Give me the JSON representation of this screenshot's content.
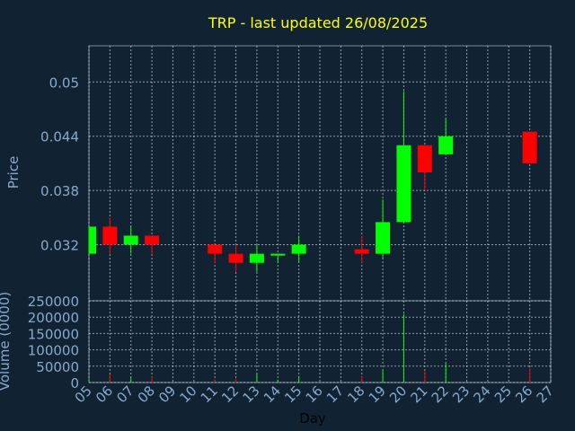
{
  "chart_data": {
    "type": "candlestick",
    "title": "TRP - last updated 26/08/2025",
    "xlabel": "Day",
    "price_panel": {
      "ylabel": "Price",
      "yticks": [
        "0.05",
        "0.044",
        "0.038",
        "0.032"
      ],
      "ylim": [
        0.0258,
        0.054
      ]
    },
    "volume_panel": {
      "ylabel": "Volume (0000)",
      "yticks": [
        "250000",
        "200000",
        "150000",
        "100000",
        "50000",
        "0"
      ],
      "ylim": [
        0,
        250000
      ]
    },
    "x_ticks": [
      "05",
      "06",
      "07",
      "08",
      "09",
      "10",
      "11",
      "12",
      "13",
      "14",
      "15",
      "16",
      "17",
      "18",
      "19",
      "20",
      "21",
      "22",
      "23",
      "24",
      "25",
      "26",
      "27"
    ],
    "up_color": "#00ff00",
    "down_color": "#ff0000",
    "grid": true,
    "candles": [
      {
        "day": "05",
        "open": 0.031,
        "high": 0.034,
        "low": 0.031,
        "close": 0.034,
        "volume": 5000
      },
      {
        "day": "06",
        "open": 0.034,
        "high": 0.035,
        "low": 0.031,
        "close": 0.032,
        "volume": 25000
      },
      {
        "day": "07",
        "open": 0.032,
        "high": 0.034,
        "low": 0.031,
        "close": 0.033,
        "volume": 15000
      },
      {
        "day": "08",
        "open": 0.033,
        "high": 0.033,
        "low": 0.031,
        "close": 0.032,
        "volume": 18000
      },
      {
        "day": "11",
        "open": 0.032,
        "high": 0.032,
        "low": 0.03,
        "close": 0.031,
        "volume": 10000
      },
      {
        "day": "12",
        "open": 0.031,
        "high": 0.032,
        "low": 0.029,
        "close": 0.03,
        "volume": 12000
      },
      {
        "day": "13",
        "open": 0.03,
        "high": 0.032,
        "low": 0.029,
        "close": 0.031,
        "volume": 25000
      },
      {
        "day": "14",
        "open": 0.031,
        "high": 0.031,
        "low": 0.03,
        "close": 0.031,
        "volume": 8000
      },
      {
        "day": "15",
        "open": 0.031,
        "high": 0.033,
        "low": 0.03,
        "close": 0.032,
        "volume": 20000
      },
      {
        "day": "18",
        "open": 0.0315,
        "high": 0.033,
        "low": 0.03,
        "close": 0.031,
        "volume": 20000
      },
      {
        "day": "19",
        "open": 0.031,
        "high": 0.037,
        "low": 0.0305,
        "close": 0.0345,
        "volume": 40000
      },
      {
        "day": "20",
        "open": 0.0345,
        "high": 0.049,
        "low": 0.0345,
        "close": 0.043,
        "volume": 210000
      },
      {
        "day": "21",
        "open": 0.043,
        "high": 0.043,
        "low": 0.038,
        "close": 0.04,
        "volume": 35000
      },
      {
        "day": "22",
        "open": 0.042,
        "high": 0.046,
        "low": 0.042,
        "close": 0.044,
        "volume": 58000
      },
      {
        "day": "26",
        "open": 0.0445,
        "high": 0.0445,
        "low": 0.041,
        "close": 0.041,
        "volume": 45000
      }
    ]
  }
}
